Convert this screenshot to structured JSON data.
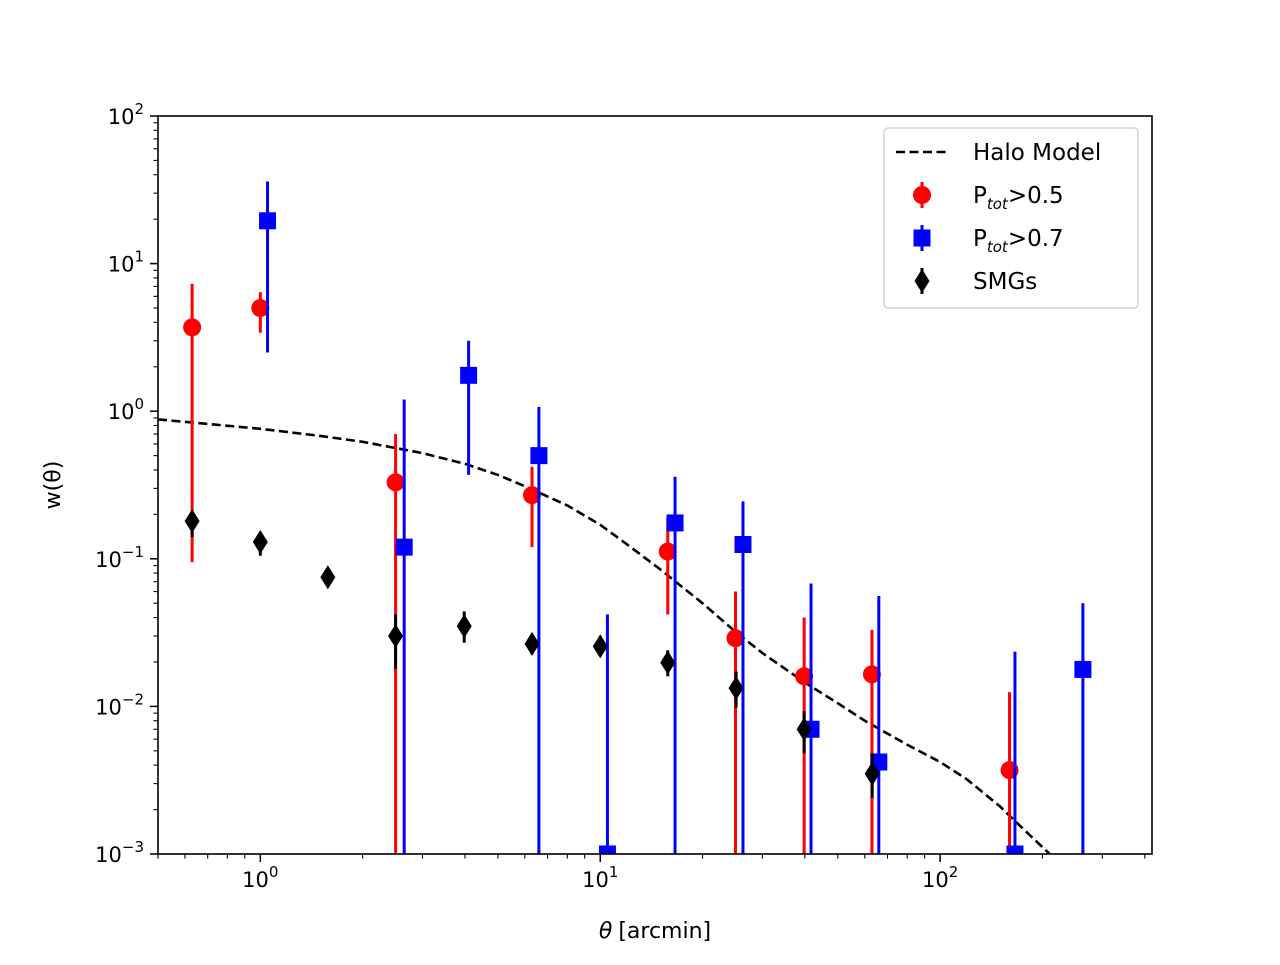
{
  "chart_data": {
    "type": "scatter",
    "xscale": "log",
    "yscale": "log",
    "xlim": [
      0.5,
      420
    ],
    "ylim": [
      0.001,
      100
    ],
    "xlabel": "[arcmin]",
    "xlabel_symbol": "θ",
    "ylabel": "w(θ)",
    "x_ticks": [
      {
        "value": 1,
        "base": "10",
        "exp": "0"
      },
      {
        "value": 10,
        "base": "10",
        "exp": "1"
      },
      {
        "value": 100,
        "base": "10",
        "exp": "2"
      }
    ],
    "y_ticks": [
      {
        "value": 0.001,
        "base": "10",
        "exp": "−3"
      },
      {
        "value": 0.01,
        "base": "10",
        "exp": "−2"
      },
      {
        "value": 0.1,
        "base": "10",
        "exp": "−1"
      },
      {
        "value": 1,
        "base": "10",
        "exp": "0"
      },
      {
        "value": 10,
        "base": "10",
        "exp": "1"
      },
      {
        "value": 100,
        "base": "10",
        "exp": "2"
      }
    ],
    "legend_position": "top-right",
    "series": [
      {
        "name": "Halo Model",
        "legend_main": "Halo Model",
        "legend_sub": "",
        "legend_rest": "",
        "kind": "line",
        "style": "dashed",
        "color": "#000000",
        "points": [
          {
            "x": 0.5,
            "y": 0.88
          },
          {
            "x": 0.7,
            "y": 0.82
          },
          {
            "x": 1.0,
            "y": 0.76
          },
          {
            "x": 1.5,
            "y": 0.68
          },
          {
            "x": 2.0,
            "y": 0.62
          },
          {
            "x": 3.0,
            "y": 0.52
          },
          {
            "x": 4.0,
            "y": 0.44
          },
          {
            "x": 5.0,
            "y": 0.37
          },
          {
            "x": 6.0,
            "y": 0.31
          },
          {
            "x": 8.0,
            "y": 0.23
          },
          {
            "x": 10.0,
            "y": 0.17
          },
          {
            "x": 12.0,
            "y": 0.125
          },
          {
            "x": 15.0,
            "y": 0.085
          },
          {
            "x": 20.0,
            "y": 0.05
          },
          {
            "x": 25.0,
            "y": 0.032
          },
          {
            "x": 30.0,
            "y": 0.023
          },
          {
            "x": 40.0,
            "y": 0.0145
          },
          {
            "x": 50.0,
            "y": 0.0105
          },
          {
            "x": 60.0,
            "y": 0.008
          },
          {
            "x": 80.0,
            "y": 0.0055
          },
          {
            "x": 100.0,
            "y": 0.0042
          },
          {
            "x": 120.0,
            "y": 0.0032
          },
          {
            "x": 150.0,
            "y": 0.0021
          },
          {
            "x": 180.0,
            "y": 0.0014
          },
          {
            "x": 210.0,
            "y": 0.001
          }
        ]
      },
      {
        "name": "Ptot>0.5",
        "legend_main": "P",
        "legend_sub": "tot",
        "legend_rest": ">0.5",
        "kind": "errorbar",
        "marker": "circle",
        "color": "#ff0000",
        "points": [
          {
            "x": 0.63,
            "y": 3.7,
            "lo": 0.095,
            "hi": 7.3
          },
          {
            "x": 1.0,
            "y": 5.0,
            "lo": 3.4,
            "hi": 6.4
          },
          {
            "x": 2.5,
            "y": 0.33,
            "lo": 0.001,
            "hi": 0.7
          },
          {
            "x": 6.3,
            "y": 0.27,
            "lo": 0.12,
            "hi": 0.42
          },
          {
            "x": 15.8,
            "y": 0.112,
            "lo": 0.042,
            "hi": 0.19
          },
          {
            "x": 25.0,
            "y": 0.029,
            "lo": 0.001,
            "hi": 0.06
          },
          {
            "x": 39.8,
            "y": 0.016,
            "lo": 0.001,
            "hi": 0.04
          },
          {
            "x": 63.0,
            "y": 0.0165,
            "lo": 0.001,
            "hi": 0.033
          },
          {
            "x": 160.0,
            "y": 0.0037,
            "lo": 0.001,
            "hi": 0.0125
          }
        ]
      },
      {
        "name": "Ptot>0.7",
        "legend_main": "P",
        "legend_sub": "tot",
        "legend_rest": ">0.7",
        "kind": "errorbar",
        "marker": "square",
        "color": "#0000ff",
        "points": [
          {
            "x": 1.05,
            "y": 19.5,
            "lo": 2.5,
            "hi": 36.0
          },
          {
            "x": 2.65,
            "y": 0.12,
            "lo": 0.001,
            "hi": 1.2
          },
          {
            "x": 4.1,
            "y": 1.75,
            "lo": 0.37,
            "hi": 3.0
          },
          {
            "x": 6.6,
            "y": 0.5,
            "lo": 0.001,
            "hi": 1.07
          },
          {
            "x": 10.5,
            "y": 0.001,
            "lo": 0.001,
            "hi": 0.042
          },
          {
            "x": 16.6,
            "y": 0.175,
            "lo": 0.001,
            "hi": 0.36
          },
          {
            "x": 26.3,
            "y": 0.125,
            "lo": 0.001,
            "hi": 0.245
          },
          {
            "x": 41.7,
            "y": 0.007,
            "lo": 0.001,
            "hi": 0.068
          },
          {
            "x": 66.0,
            "y": 0.0042,
            "lo": 0.001,
            "hi": 0.056
          },
          {
            "x": 166.0,
            "y": 0.001,
            "lo": 0.001,
            "hi": 0.0235
          },
          {
            "x": 263.0,
            "y": 0.0178,
            "lo": 0.001,
            "hi": 0.05
          }
        ]
      },
      {
        "name": "SMGs",
        "legend_main": "SMGs",
        "legend_sub": "",
        "legend_rest": "",
        "kind": "errorbar",
        "marker": "diamond",
        "color": "#000000",
        "points": [
          {
            "x": 0.63,
            "y": 0.18,
            "lo": 0.14,
            "hi": 0.21
          },
          {
            "x": 1.0,
            "y": 0.13,
            "lo": 0.105,
            "hi": 0.148
          },
          {
            "x": 1.58,
            "y": 0.075,
            "lo": 0.068,
            "hi": 0.082
          },
          {
            "x": 2.5,
            "y": 0.03,
            "lo": 0.018,
            "hi": 0.042
          },
          {
            "x": 3.98,
            "y": 0.035,
            "lo": 0.027,
            "hi": 0.044
          },
          {
            "x": 6.3,
            "y": 0.0265,
            "lo": 0.0225,
            "hi": 0.031
          },
          {
            "x": 10.0,
            "y": 0.0255,
            "lo": 0.022,
            "hi": 0.03
          },
          {
            "x": 15.8,
            "y": 0.0198,
            "lo": 0.016,
            "hi": 0.024
          },
          {
            "x": 25.1,
            "y": 0.0133,
            "lo": 0.0098,
            "hi": 0.0172
          },
          {
            "x": 39.8,
            "y": 0.007,
            "lo": 0.0048,
            "hi": 0.0093
          },
          {
            "x": 63.1,
            "y": 0.0035,
            "lo": 0.0024,
            "hi": 0.0048
          }
        ]
      }
    ]
  }
}
